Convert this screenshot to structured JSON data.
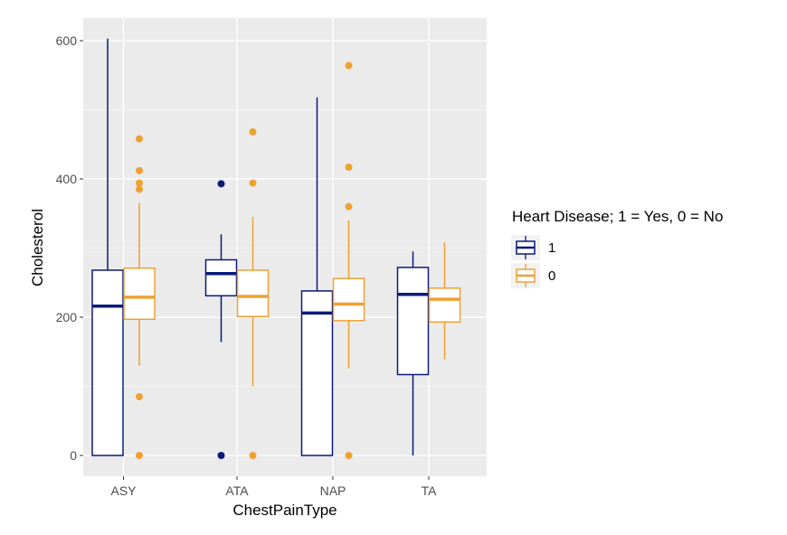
{
  "chart_data": {
    "type": "boxplot",
    "xlabel": "ChestPainType",
    "ylabel": "Cholesterol",
    "categories": [
      "ASY",
      "ATA",
      "NAP",
      "TA"
    ],
    "y_ticks": [
      "0",
      "200",
      "400",
      "600"
    ],
    "ylim": [
      -30,
      632
    ],
    "grid": true,
    "legend_position": "right",
    "legend": {
      "title": "Heart Disease; 1 = Yes, 0 = No",
      "entries": [
        {
          "label": "1",
          "color": "#0a1a7a"
        },
        {
          "label": "0",
          "color": "#f0a030"
        }
      ]
    },
    "series": [
      {
        "name": "1",
        "color": "#0a1a7a",
        "boxes": [
          {
            "category": "ASY",
            "whisker_low": 0,
            "q1": 0,
            "median": 216,
            "q3": 268,
            "whisker_high": 603,
            "outliers": []
          },
          {
            "category": "ATA",
            "whisker_low": 164,
            "q1": 231,
            "median": 263,
            "q3": 283,
            "whisker_high": 320,
            "outliers": [
              393,
              0
            ]
          },
          {
            "category": "NAP",
            "whisker_low": 0,
            "q1": 0,
            "median": 206,
            "q3": 238,
            "whisker_high": 518,
            "outliers": []
          },
          {
            "category": "TA",
            "whisker_low": 0,
            "q1": 117,
            "median": 233,
            "q3": 272,
            "whisker_high": 295,
            "outliers": []
          }
        ]
      },
      {
        "name": "0",
        "color": "#f0a030",
        "boxes": [
          {
            "category": "ASY",
            "whisker_low": 130,
            "q1": 197,
            "median": 229,
            "q3": 271,
            "whisker_high": 365,
            "outliers": [
              458,
              412,
              394,
              385,
              85,
              0
            ]
          },
          {
            "category": "ATA",
            "whisker_low": 100,
            "q1": 201,
            "median": 230,
            "q3": 268,
            "whisker_high": 345,
            "outliers": [
              468,
              394,
              0
            ]
          },
          {
            "category": "NAP",
            "whisker_low": 126,
            "q1": 195,
            "median": 219,
            "q3": 256,
            "whisker_high": 340,
            "outliers": [
              564,
              417,
              360,
              0
            ]
          },
          {
            "category": "TA",
            "whisker_low": 139,
            "q1": 193,
            "median": 226,
            "q3": 242,
            "whisker_high": 308,
            "outliers": []
          }
        ]
      }
    ]
  }
}
